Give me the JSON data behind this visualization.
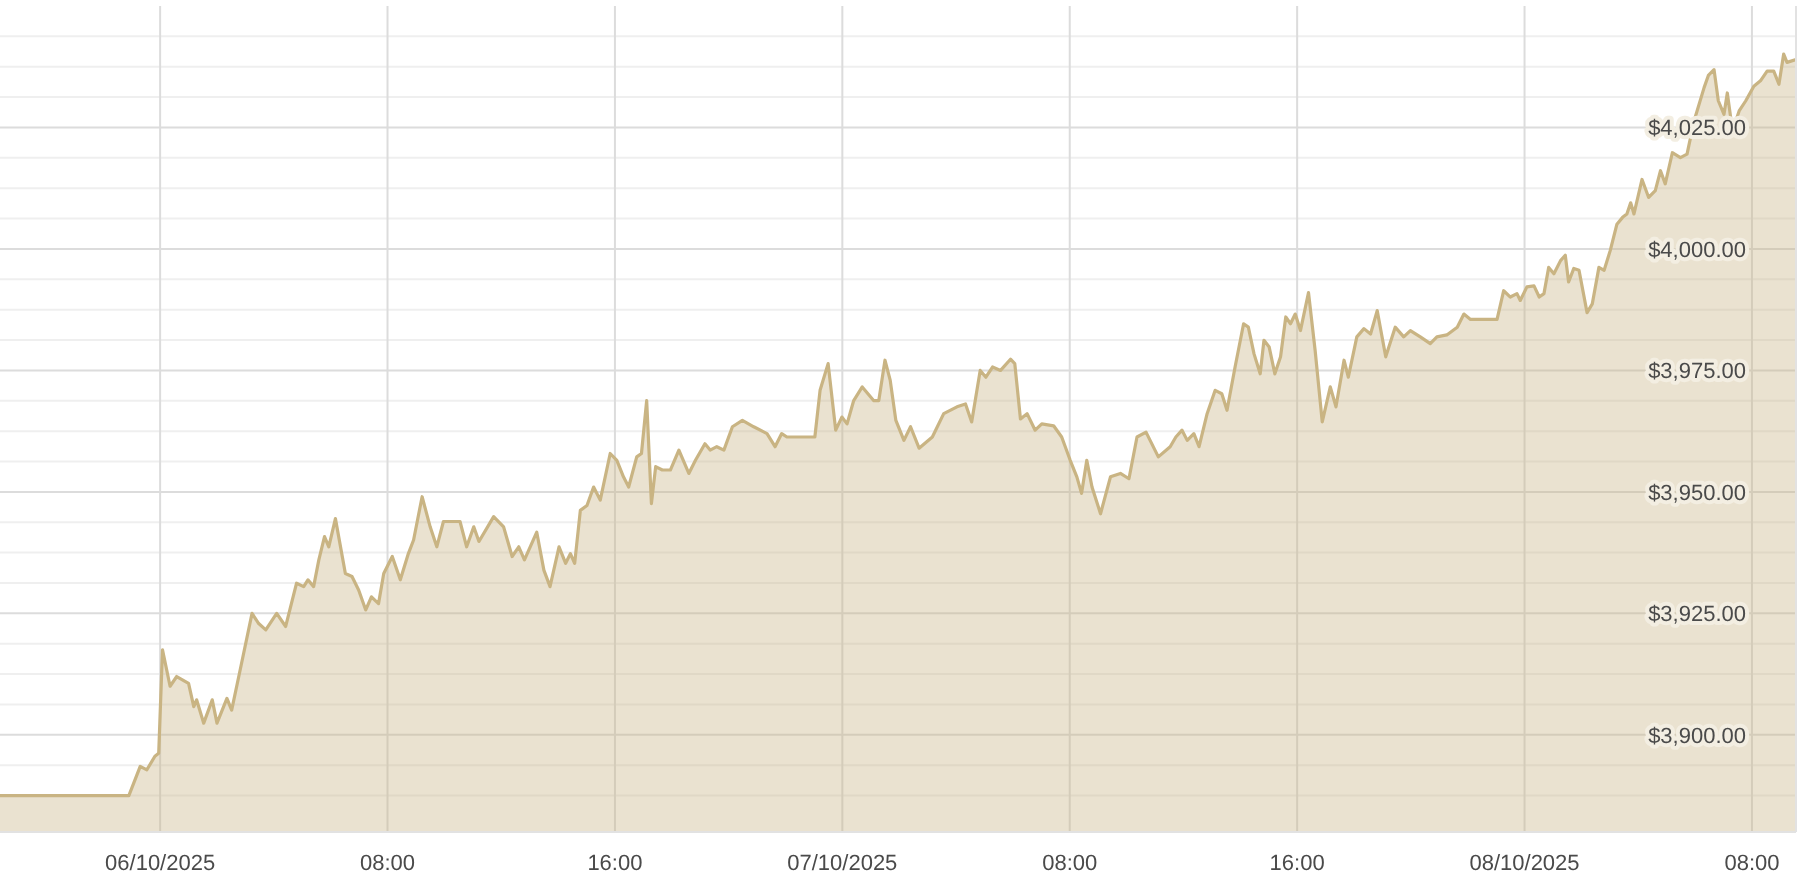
{
  "chart_data": {
    "type": "area",
    "color": "#c9b483",
    "grid": true,
    "xlim": [
      "2025-10-05T18:22",
      "2025-10-08T09:33"
    ],
    "xticks": [
      {
        "value": "2025-10-06T00:00",
        "label": "06/10/2025"
      },
      {
        "value": "2025-10-06T08:00",
        "label": "08:00"
      },
      {
        "value": "2025-10-06T16:00",
        "label": "16:00"
      },
      {
        "value": "2025-10-07T00:00",
        "label": "07/10/2025"
      },
      {
        "value": "2025-10-07T08:00",
        "label": "08:00"
      },
      {
        "value": "2025-10-07T16:00",
        "label": "16:00"
      },
      {
        "value": "2025-10-08T00:00",
        "label": "08/10/2025"
      },
      {
        "value": "2025-10-08T08:00",
        "label": "08:00"
      }
    ],
    "ylim": [
      3880,
      4050
    ],
    "yticks": [
      {
        "value": 3887.5,
        "label": null
      },
      {
        "value": 3893.75,
        "label": null
      },
      {
        "value": 3900,
        "label": "$3,900.00"
      },
      {
        "value": 3906.25,
        "label": null
      },
      {
        "value": 3912.5,
        "label": null
      },
      {
        "value": 3918.75,
        "label": null
      },
      {
        "value": 3925,
        "label": "$3,925.00"
      },
      {
        "value": 3931.25,
        "label": null
      },
      {
        "value": 3937.5,
        "label": null
      },
      {
        "value": 3943.75,
        "label": null
      },
      {
        "value": 3950,
        "label": "$3,950.00"
      },
      {
        "value": 3956.25,
        "label": null
      },
      {
        "value": 3962.5,
        "label": null
      },
      {
        "value": 3968.75,
        "label": null
      },
      {
        "value": 3975,
        "label": "$3,975.00"
      },
      {
        "value": 3981.25,
        "label": null
      },
      {
        "value": 3987.5,
        "label": null
      },
      {
        "value": 3993.75,
        "label": null
      },
      {
        "value": 4000,
        "label": "$4,000.00"
      },
      {
        "value": 4006.25,
        "label": null
      },
      {
        "value": 4012.5,
        "label": null
      },
      {
        "value": 4018.75,
        "label": null
      },
      {
        "value": 4025,
        "label": "$4,025.00"
      },
      {
        "value": 4031.25,
        "label": null
      },
      {
        "value": 4037.5,
        "label": null
      },
      {
        "value": 4043.75,
        "label": null
      }
    ],
    "x": [
      "2025-10-05T18:22",
      "2025-10-05T22:54",
      "2025-10-05T23:18",
      "2025-10-05T23:32",
      "2025-10-05T23:49",
      "2025-10-05T23:57",
      "2025-10-06T00:05",
      "2025-10-06T00:21",
      "2025-10-06T00:35",
      "2025-10-06T01:00",
      "2025-10-06T01:11",
      "2025-10-06T01:17",
      "2025-10-06T01:32",
      "2025-10-06T01:50",
      "2025-10-06T02:00",
      "2025-10-06T02:21",
      "2025-10-06T02:31",
      "2025-10-06T02:49",
      "2025-10-06T03:14",
      "2025-10-06T03:28",
      "2025-10-06T03:43",
      "2025-10-06T04:06",
      "2025-10-06T04:25",
      "2025-10-06T04:48",
      "2025-10-06T05:03",
      "2025-10-06T05:12",
      "2025-10-06T05:24",
      "2025-10-06T05:35",
      "2025-10-06T05:47",
      "2025-10-06T05:56",
      "2025-10-06T06:10",
      "2025-10-06T06:31",
      "2025-10-06T06:45",
      "2025-10-06T06:59",
      "2025-10-06T07:14",
      "2025-10-06T07:26",
      "2025-10-06T07:41",
      "2025-10-06T07:52",
      "2025-10-06T08:10",
      "2025-10-06T08:27",
      "2025-10-06T08:44",
      "2025-10-06T08:55",
      "2025-10-06T09:13",
      "2025-10-06T09:30",
      "2025-10-06T09:44",
      "2025-10-06T09:58",
      "2025-10-06T10:33",
      "2025-10-06T10:47",
      "2025-10-06T11:02",
      "2025-10-06T11:13",
      "2025-10-06T11:44",
      "2025-10-06T12:05",
      "2025-10-06T12:23",
      "2025-10-06T12:37",
      "2025-10-06T12:49",
      "2025-10-06T13:15",
      "2025-10-06T13:30",
      "2025-10-06T13:43",
      "2025-10-06T14:02",
      "2025-10-06T14:16",
      "2025-10-06T14:26",
      "2025-10-06T14:35",
      "2025-10-06T14:47",
      "2025-10-06T15:01",
      "2025-10-06T15:15",
      "2025-10-06T15:29",
      "2025-10-06T15:50",
      "2025-10-06T16:04",
      "2025-10-06T16:18",
      "2025-10-06T16:29",
      "2025-10-06T16:46",
      "2025-10-06T16:56",
      "2025-10-06T17:07",
      "2025-10-06T17:17",
      "2025-10-06T17:26",
      "2025-10-06T17:40",
      "2025-10-06T17:57",
      "2025-10-06T18:15",
      "2025-10-06T18:36",
      "2025-10-06T18:50",
      "2025-10-06T19:10",
      "2025-10-06T19:21",
      "2025-10-06T19:35",
      "2025-10-06T19:50",
      "2025-10-06T20:08",
      "2025-10-06T20:29",
      "2025-10-06T20:53",
      "2025-10-06T21:21",
      "2025-10-06T21:38",
      "2025-10-06T21:52",
      "2025-10-06T22:03",
      "2025-10-06T23:02",
      "2025-10-06T23:13",
      "2025-10-06T23:30",
      "2025-10-06T23:46",
      "2025-10-06T23:59",
      "2025-10-07T00:10",
      "2025-10-07T00:24",
      "2025-10-07T00:42",
      "2025-10-07T01:06",
      "2025-10-07T01:17",
      "2025-10-07T01:30",
      "2025-10-07T01:41",
      "2025-10-07T01:53",
      "2025-10-07T02:10",
      "2025-10-07T02:24",
      "2025-10-07T02:42",
      "2025-10-07T03:10",
      "2025-10-07T03:34",
      "2025-10-07T04:02",
      "2025-10-07T04:20",
      "2025-10-07T04:33",
      "2025-10-07T04:51",
      "2025-10-07T05:03",
      "2025-10-07T05:17",
      "2025-10-07T05:34",
      "2025-10-07T05:55",
      "2025-10-07T06:04",
      "2025-10-07T06:16",
      "2025-10-07T06:30",
      "2025-10-07T06:47",
      "2025-10-07T07:01",
      "2025-10-07T07:26",
      "2025-10-07T07:43",
      "2025-10-07T08:01",
      "2025-10-07T08:15",
      "2025-10-07T08:25",
      "2025-10-07T08:36",
      "2025-10-07T08:47",
      "2025-10-07T09:05",
      "2025-10-07T09:26",
      "2025-10-07T09:47",
      "2025-10-07T10:05",
      "2025-10-07T10:22",
      "2025-10-07T10:41",
      "2025-10-07T11:07",
      "2025-10-07T11:32",
      "2025-10-07T11:44",
      "2025-10-07T11:57",
      "2025-10-07T12:08",
      "2025-10-07T12:22",
      "2025-10-07T12:33",
      "2025-10-07T12:50",
      "2025-10-07T13:07",
      "2025-10-07T13:21",
      "2025-10-07T13:32",
      "2025-10-07T13:49",
      "2025-10-07T14:07",
      "2025-10-07T14:17",
      "2025-10-07T14:29",
      "2025-10-07T14:42",
      "2025-10-07T14:50",
      "2025-10-07T15:01",
      "2025-10-07T15:13",
      "2025-10-07T15:25",
      "2025-10-07T15:36",
      "2025-10-07T15:46",
      "2025-10-07T15:56",
      "2025-10-07T16:07",
      "2025-10-07T16:24",
      "2025-10-07T16:38",
      "2025-10-07T16:53",
      "2025-10-07T17:10",
      "2025-10-07T17:22",
      "2025-10-07T17:39",
      "2025-10-07T17:48",
      "2025-10-07T18:06",
      "2025-10-07T18:21",
      "2025-10-07T18:35",
      "2025-10-07T18:49",
      "2025-10-07T19:07",
      "2025-10-07T19:27",
      "2025-10-07T19:45",
      "2025-10-07T19:59",
      "2025-10-07T20:20",
      "2025-10-07T20:41",
      "2025-10-07T20:55",
      "2025-10-07T21:16",
      "2025-10-07T21:38",
      "2025-10-07T21:52",
      "2025-10-07T22:06",
      "2025-10-07T23:02",
      "2025-10-07T23:16",
      "2025-10-07T23:30",
      "2025-10-07T23:44",
      "2025-10-07T23:51",
      "2025-10-08T00:05",
      "2025-10-08T00:20",
      "2025-10-08T00:31",
      "2025-10-08T00:41",
      "2025-10-08T00:51",
      "2025-10-08T01:02",
      "2025-10-08T01:16",
      "2025-10-08T01:26",
      "2025-10-08T01:33",
      "2025-10-08T01:44",
      "2025-10-08T01:55",
      "2025-10-08T02:12",
      "2025-10-08T02:23",
      "2025-10-08T02:37",
      "2025-10-08T02:48",
      "2025-10-08T03:01",
      "2025-10-08T03:15",
      "2025-10-08T03:27",
      "2025-10-08T03:36",
      "2025-10-08T03:44",
      "2025-10-08T03:51",
      "2025-10-08T04:08",
      "2025-10-08T04:22",
      "2025-10-08T04:36",
      "2025-10-08T04:47",
      "2025-10-08T04:57",
      "2025-10-08T05:12",
      "2025-10-08T05:29",
      "2025-10-08T05:43",
      "2025-10-08T05:58",
      "2025-10-08T06:19",
      "2025-10-08T06:28",
      "2025-10-08T06:40",
      "2025-10-08T06:49",
      "2025-10-08T07:01",
      "2025-10-08T07:08",
      "2025-10-08T07:19",
      "2025-10-08T07:33",
      "2025-10-08T07:47",
      "2025-10-08T08:04",
      "2025-10-08T08:18",
      "2025-10-08T08:32",
      "2025-10-08T08:46",
      "2025-10-08T08:57",
      "2025-10-08T09:07",
      "2025-10-08T09:14",
      "2025-10-08T09:33"
    ],
    "values": [
      3887.5,
      3887.5,
      3893.5,
      3892.8,
      3895.6,
      3896.2,
      3917.5,
      3910,
      3912,
      3910.6,
      3905.8,
      3907.2,
      3902.4,
      3907.2,
      3902.4,
      3907.5,
      3905.1,
      3913.4,
      3925,
      3922.9,
      3921.6,
      3925,
      3922.3,
      3931.2,
      3930.5,
      3931.9,
      3930.5,
      3936,
      3940.8,
      3938.7,
      3944.5,
      3933.2,
      3932.6,
      3929.8,
      3925.7,
      3928.4,
      3927,
      3933.2,
      3936.7,
      3931.9,
      3937.3,
      3940.1,
      3949,
      3942.8,
      3938.7,
      3943.9,
      3943.9,
      3938.7,
      3942.8,
      3939.8,
      3944.9,
      3942.8,
      3936.7,
      3938.7,
      3936,
      3941.7,
      3933.9,
      3930.5,
      3938.7,
      3935.3,
      3937.3,
      3935.3,
      3946.2,
      3947.2,
      3951,
      3948.3,
      3957.9,
      3956.5,
      3953.1,
      3951,
      3957.2,
      3957.9,
      3968.8,
      3947.6,
      3955.2,
      3954.5,
      3954.5,
      3958.6,
      3953.8,
      3956.5,
      3959.9,
      3958.6,
      3959.3,
      3958.6,
      3963.4,
      3964.7,
      3963.4,
      3962,
      3959.3,
      3962,
      3961.3,
      3961.3,
      3970.9,
      3976.4,
      3962.7,
      3965.4,
      3964,
      3968.8,
      3971.6,
      3968.8,
      3968.8,
      3977.1,
      3973,
      3964.7,
      3960.6,
      3963.4,
      3959,
      3961.3,
      3966.1,
      3967.5,
      3968.1,
      3964.4,
      3975,
      3973.6,
      3975.7,
      3975,
      3977.3,
      3976.4,
      3965,
      3966.1,
      3962.7,
      3964,
      3963.6,
      3961.3,
      3956.5,
      3953.1,
      3949.7,
      3956.5,
      3951,
      3945.5,
      3953.1,
      3953.8,
      3952.7,
      3961.3,
      3962.3,
      3957.2,
      3959.3,
      3961.3,
      3962.7,
      3960.6,
      3962,
      3959.3,
      3966.1,
      3970.9,
      3970.2,
      3966.8,
      3975.7,
      3984.6,
      3983.9,
      3978.4,
      3974.3,
      3981.2,
      3979.8,
      3974.3,
      3977.8,
      3986,
      3984.6,
      3986.6,
      3983.2,
      3991,
      3979.1,
      3964.4,
      3971.6,
      3967.5,
      3977.1,
      3973.6,
      3981.9,
      3983.6,
      3982.5,
      3987.3,
      3977.8,
      3983.9,
      3981.9,
      3983.2,
      3981.9,
      3980.5,
      3981.9,
      3982.3,
      3983.9,
      3986.6,
      3985.5,
      3985.5,
      3991.4,
      3990.1,
      3990.8,
      3989.4,
      3992.2,
      3992.4,
      3990.1,
      3990.8,
      3996.2,
      3994.9,
      3997.6,
      3998.7,
      3993.2,
      3996,
      3995.6,
      3986.9,
      3988.7,
      3996.2,
      3995.6,
      3999.7,
      4005.1,
      4006.5,
      4007.2,
      4009.5,
      4007.2,
      4014.3,
      4010.6,
      4012,
      4016.1,
      4013.4,
      4019.8,
      4018.8,
      4019.5,
      4026.4,
      4033.2,
      4035.7,
      4036.9,
      4030.5,
      4027.7,
      4032.1,
      4024.3,
      4028.4,
      4030.5,
      4033.5,
      4034.6,
      4036.6,
      4036.6,
      4033.9,
      4040.1,
      4038.4,
      4039
    ]
  }
}
